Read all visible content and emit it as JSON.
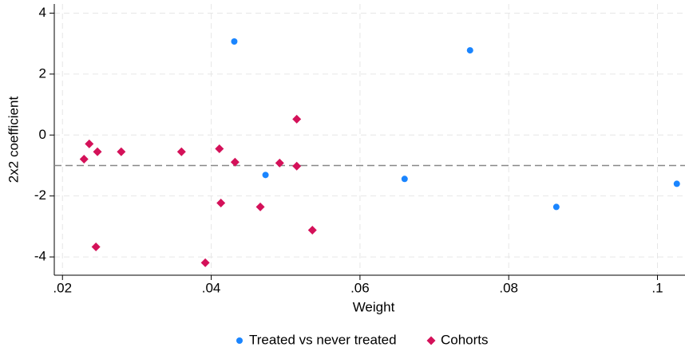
{
  "chart_data": {
    "type": "scatter",
    "xlabel": "Weight",
    "ylabel": "2x2 coefficient",
    "xlim": [
      0.0189,
      0.1037
    ],
    "ylim": [
      -4.6,
      4.3
    ],
    "xticks": [
      {
        "value": 0.02,
        "label": ".02"
      },
      {
        "value": 0.04,
        "label": ".04"
      },
      {
        "value": 0.06,
        "label": ".06"
      },
      {
        "value": 0.08,
        "label": ".08"
      },
      {
        "value": 0.1,
        "label": ".1"
      }
    ],
    "yticks": [
      -4,
      -2,
      0,
      2,
      4
    ],
    "grid": true,
    "hline": -1.0,
    "legend": "bottom",
    "series": [
      {
        "name": "Treated vs never treated",
        "color": "#1a85ff",
        "marker": "circle",
        "x": [
          0.0431,
          0.0748,
          0.0473,
          0.066,
          0.0864,
          0.1026
        ],
        "values": [
          3.07,
          2.78,
          -1.31,
          -1.44,
          -2.36,
          -1.6
        ]
      },
      {
        "name": "Cohorts",
        "color": "#d41159",
        "marker": "diamond",
        "x": [
          0.0229,
          0.0236,
          0.0247,
          0.0279,
          0.036,
          0.0411,
          0.0432,
          0.0492,
          0.0515,
          0.0515,
          0.0413,
          0.0466,
          0.0536,
          0.0245,
          0.0392
        ],
        "values": [
          -0.79,
          -0.29,
          -0.55,
          -0.55,
          -0.55,
          -0.45,
          -0.89,
          -0.92,
          0.52,
          -1.02,
          -2.23,
          -2.36,
          -3.12,
          -3.67,
          -4.19
        ]
      }
    ]
  }
}
